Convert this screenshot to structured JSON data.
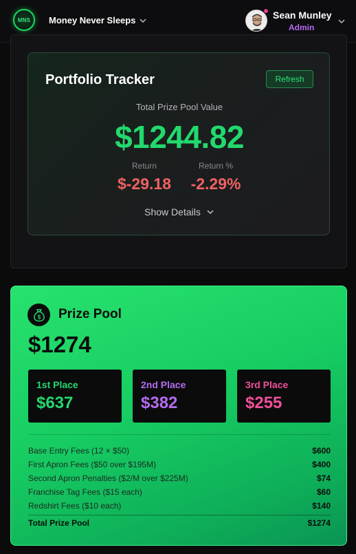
{
  "header": {
    "logo_text": "MNS",
    "org_name": "Money Never Sleeps",
    "user_name": "Sean Munley",
    "user_role": "Admin"
  },
  "portfolio": {
    "title": "Portfolio Tracker",
    "refresh_label": "Refresh",
    "total_label": "Total Prize Pool Value",
    "total_value": "$1244.82",
    "return_label": "Return",
    "return_value": "$-29.18",
    "return_pct_label": "Return %",
    "return_pct_value": "-2.29%",
    "show_details_label": "Show Details"
  },
  "prize_pool": {
    "title": "Prize Pool",
    "amount": "$1274",
    "places": [
      {
        "label": "1st Place",
        "value": "$637",
        "color": "#22d96d"
      },
      {
        "label": "2nd Place",
        "value": "$382",
        "color": "#b46cf0"
      },
      {
        "label": "3rd Place",
        "value": "$255",
        "color": "#f0509a"
      }
    ],
    "fees": [
      {
        "label": "Base Entry Fees (12 × $50)",
        "amount": "$600"
      },
      {
        "label": "First Apron Fees ($50 over $195M)",
        "amount": "$400"
      },
      {
        "label": "Second Apron Penalties ($2/M over $225M)",
        "amount": "$74"
      },
      {
        "label": "Franchise Tag Fees ($15 each)",
        "amount": "$60"
      },
      {
        "label": "Redshirt Fees ($10 each)",
        "amount": "$140"
      }
    ],
    "total_label": "Total Prize Pool",
    "total_amount": "$1274"
  },
  "colors": {
    "accent_green": "#22d96d",
    "negative_red": "#f06262",
    "admin_purple": "#b46cf0"
  }
}
